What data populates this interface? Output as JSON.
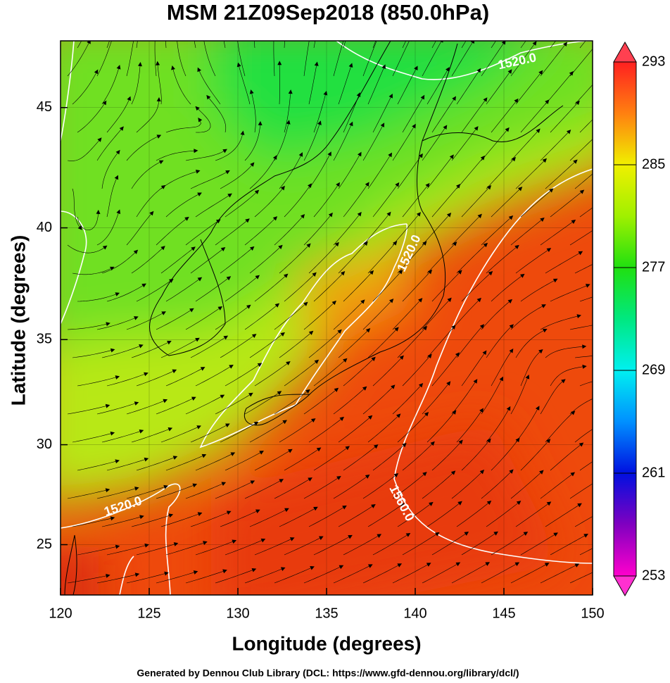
{
  "chart_data": {
    "type": "map",
    "title": "MSM 21Z09Sep2018 (850.0hPa)",
    "x_label": "Longitude (degrees)",
    "y_label": "Latitude  (degrees)",
    "footer": "Generated by Dennou Club Library (DCL: https://www.gfd-dennou.org/library/dcl/)",
    "xlim": [
      120,
      150
    ],
    "ylim": [
      22.4,
      47.6
    ],
    "xticks": [
      120,
      125,
      130,
      135,
      140,
      145,
      150
    ],
    "yticks": [
      25,
      30,
      35,
      40,
      45
    ],
    "projection": "mercator",
    "grid": true,
    "contour_labels": [
      "1520.0",
      "1520.0",
      "1520.0",
      "1560.0"
    ],
    "colorbar": {
      "lim": [
        253,
        293
      ],
      "ticks": [
        253,
        261,
        269,
        277,
        285,
        293
      ]
    }
  }
}
